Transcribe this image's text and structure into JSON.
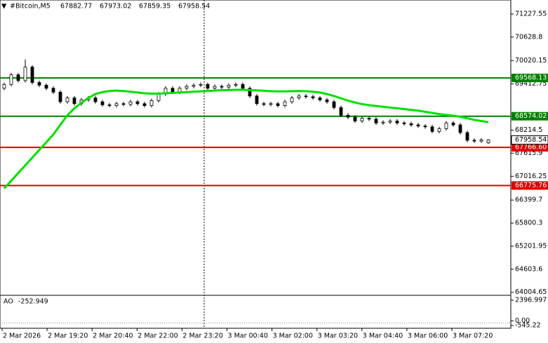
{
  "chart_data": {
    "type": "candlestick",
    "title": "#Bitcoin,M5",
    "open": [
      69300,
      69400,
      69650,
      69500,
      69850,
      69450,
      69380,
      69300,
      69200,
      68950,
      69050,
      68900,
      69000,
      69050,
      68950,
      68870,
      68850,
      68900,
      68880,
      68950,
      68900,
      68850,
      68980,
      69150,
      69300,
      69200,
      69300,
      69350,
      69380,
      69400,
      69300,
      69350,
      69330,
      69380,
      69400,
      69300,
      69100,
      68900,
      68880,
      68900,
      68850,
      68950,
      69050,
      69100,
      69080,
      69050,
      69000,
      68950,
      68800,
      68600,
      68550,
      68450,
      68520,
      68500,
      68400,
      68420,
      68450,
      68400,
      68380,
      68350,
      68320,
      68300,
      68180,
      68250,
      68400,
      68350,
      68150,
      67950,
      67930,
      67882.77
    ],
    "high": [
      69450,
      69700,
      69700,
      70050,
      69900,
      69500,
      69430,
      69350,
      69250,
      69100,
      69100,
      69050,
      69100,
      69100,
      69000,
      68920,
      68950,
      68950,
      69000,
      69000,
      68950,
      69030,
      69200,
      69350,
      69350,
      69350,
      69400,
      69430,
      69450,
      69450,
      69400,
      69400,
      69430,
      69450,
      69450,
      69350,
      69150,
      68950,
      68950,
      68950,
      69000,
      69100,
      69150,
      69150,
      69130,
      69100,
      69050,
      69000,
      68850,
      68650,
      68600,
      68570,
      68570,
      68550,
      68470,
      68500,
      68500,
      68450,
      68430,
      68400,
      68370,
      68350,
      68300,
      68450,
      68450,
      68400,
      68200,
      68000,
      68010,
      67973.02
    ],
    "low": [
      69250,
      69350,
      69450,
      69450,
      69400,
      69330,
      69250,
      69150,
      68900,
      68900,
      68850,
      68850,
      68950,
      68900,
      68820,
      68800,
      68800,
      68830,
      68830,
      68850,
      68800,
      68800,
      68930,
      69100,
      69150,
      69150,
      69250,
      69300,
      69330,
      69250,
      69250,
      69280,
      69280,
      69330,
      69250,
      69050,
      68850,
      68830,
      68830,
      68800,
      68800,
      68900,
      69000,
      69030,
      69000,
      68950,
      68900,
      68750,
      68550,
      68500,
      68400,
      68400,
      68450,
      68350,
      68350,
      68370,
      68350,
      68330,
      68300,
      68270,
      68250,
      68130,
      68130,
      68200,
      68300,
      68100,
      67900,
      67880,
      67880,
      67859.35
    ],
    "close": [
      69400,
      69650,
      69500,
      69850,
      69450,
      69380,
      69300,
      69200,
      68950,
      69050,
      68900,
      69000,
      69050,
      68950,
      68870,
      68850,
      68900,
      68880,
      68950,
      68900,
      68850,
      68980,
      69150,
      69300,
      69200,
      69300,
      69350,
      69380,
      69400,
      69300,
      69350,
      69330,
      69380,
      69400,
      69300,
      69100,
      68900,
      68880,
      68900,
      68850,
      68950,
      69050,
      69100,
      69080,
      69050,
      69000,
      68950,
      68800,
      68600,
      68550,
      68450,
      68520,
      68500,
      68400,
      68420,
      68450,
      68400,
      68380,
      68350,
      68320,
      68300,
      68180,
      68250,
      68400,
      68350,
      68150,
      67950,
      67930,
      67960,
      67958.54
    ],
    "ma": {
      "color": "#00e000",
      "values": [
        66700,
        66900,
        67100,
        67300,
        67500,
        67700,
        67900,
        68100,
        68350,
        68600,
        68780,
        68920,
        69050,
        69150,
        69200,
        69230,
        69240,
        69230,
        69210,
        69190,
        69170,
        69160,
        69160,
        69170,
        69180,
        69190,
        69200,
        69210,
        69220,
        69230,
        69240,
        69250,
        69255,
        69260,
        69260,
        69255,
        69245,
        69235,
        69225,
        69220,
        69220,
        69225,
        69230,
        69225,
        69210,
        69190,
        69150,
        69100,
        69040,
        68980,
        68930,
        68890,
        68860,
        68840,
        68820,
        68800,
        68780,
        68760,
        68740,
        68720,
        68690,
        68660,
        68630,
        68610,
        68590,
        68560,
        68520,
        68480,
        68450,
        68420
      ]
    },
    "levels": [
      {
        "value": 69568.13,
        "color": "#008000"
      },
      {
        "value": 68574.02,
        "color": "#008000"
      },
      {
        "value": 67766.6,
        "color": "#e00000",
        "value_label": "67766.60"
      },
      {
        "value": 66775.76,
        "color": "#e00000"
      }
    ],
    "ylim": [
      63945,
      71591
    ],
    "yticks": [
      71227.55,
      70628.8,
      70020.15,
      69412.75,
      68214.5,
      67615.9,
      67016.25,
      66399.7,
      65800.3,
      65201.95,
      64603.6,
      64004.65
    ],
    "x_labels": [
      "2 Mar 2026",
      "2 Mar 19:20",
      "2 Mar 20:40",
      "2 Mar 22:00",
      "2 Mar 23:20",
      "3 Mar 00:40",
      "3 Mar 02:00",
      "3 Mar 03:20",
      "3 Mar 04:40",
      "3 Mar 06:00",
      "3 Mar 07:20"
    ],
    "ao": {
      "name": "AO",
      "value": -252.949,
      "ylim": [
        -545.22,
        2396.997
      ],
      "yticks": [
        2396.997,
        {
          "value": 0,
          "label": "0.00"
        },
        -545.22
      ]
    }
  }
}
